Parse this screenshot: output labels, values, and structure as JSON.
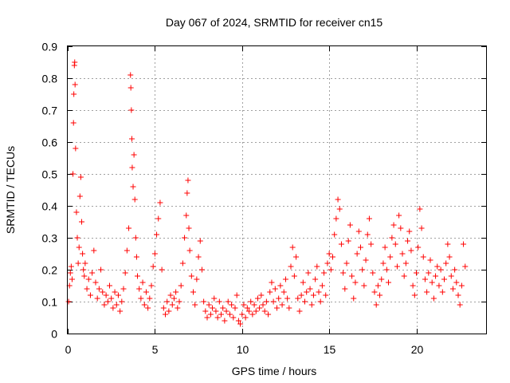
{
  "chart_data": {
    "type": "scatter",
    "title": "Day 067 of 2024, SRMTID for receiver cn15",
    "xlabel": "GPS time / hours",
    "ylabel": "SRMTID / TECUs",
    "xlim": [
      0,
      24.0
    ],
    "ylim": [
      0,
      0.9
    ],
    "x_ticks": [
      0,
      5,
      10,
      15,
      20
    ],
    "x_tick_labels": [
      "0",
      "5",
      "10",
      "15",
      "20"
    ],
    "y_ticks": [
      0,
      0.1,
      0.2,
      0.3,
      0.4,
      0.5,
      0.6,
      0.7,
      0.8,
      0.9
    ],
    "y_tick_labels": [
      "0",
      "0.1",
      "0.2",
      "0.3",
      "0.4",
      "0.5",
      "0.6",
      "0.7",
      "0.8",
      "0.9"
    ],
    "grid": true,
    "marker": "+",
    "color": "#ff0000",
    "series": [
      {
        "name": "SRMTID",
        "points": [
          [
            0.05,
            0.1
          ],
          [
            0.1,
            0.15
          ],
          [
            0.15,
            0.19
          ],
          [
            0.2,
            0.21
          ],
          [
            0.25,
            0.17
          ],
          [
            0.3,
            0.5
          ],
          [
            0.33,
            0.66
          ],
          [
            0.35,
            0.75
          ],
          [
            0.38,
            0.84
          ],
          [
            0.4,
            0.85
          ],
          [
            0.42,
            0.78
          ],
          [
            0.45,
            0.58
          ],
          [
            0.5,
            0.38
          ],
          [
            0.55,
            0.3
          ],
          [
            0.6,
            0.22
          ],
          [
            0.65,
            0.27
          ],
          [
            0.7,
            0.43
          ],
          [
            0.75,
            0.49
          ],
          [
            0.8,
            0.35
          ],
          [
            0.85,
            0.25
          ],
          [
            0.9,
            0.2
          ],
          [
            0.95,
            0.18
          ],
          [
            1.0,
            0.22
          ],
          [
            1.1,
            0.14
          ],
          [
            1.2,
            0.17
          ],
          [
            1.3,
            0.12
          ],
          [
            1.4,
            0.19
          ],
          [
            1.5,
            0.26
          ],
          [
            1.6,
            0.16
          ],
          [
            1.7,
            0.11
          ],
          [
            1.8,
            0.14
          ],
          [
            1.9,
            0.2
          ],
          [
            2.0,
            0.13
          ],
          [
            2.1,
            0.09
          ],
          [
            2.2,
            0.12
          ],
          [
            2.3,
            0.1
          ],
          [
            2.4,
            0.15
          ],
          [
            2.5,
            0.11
          ],
          [
            2.6,
            0.08
          ],
          [
            2.7,
            0.13
          ],
          [
            2.8,
            0.09
          ],
          [
            2.9,
            0.12
          ],
          [
            3.0,
            0.07
          ],
          [
            3.1,
            0.1
          ],
          [
            3.2,
            0.14
          ],
          [
            3.3,
            0.19
          ],
          [
            3.4,
            0.26
          ],
          [
            3.5,
            0.33
          ],
          [
            3.6,
            0.81
          ],
          [
            3.62,
            0.77
          ],
          [
            3.65,
            0.7
          ],
          [
            3.68,
            0.61
          ],
          [
            3.7,
            0.52
          ],
          [
            3.75,
            0.46
          ],
          [
            3.8,
            0.56
          ],
          [
            3.85,
            0.42
          ],
          [
            3.9,
            0.3
          ],
          [
            3.95,
            0.24
          ],
          [
            4.0,
            0.18
          ],
          [
            4.1,
            0.14
          ],
          [
            4.2,
            0.11
          ],
          [
            4.3,
            0.16
          ],
          [
            4.4,
            0.09
          ],
          [
            4.5,
            0.13
          ],
          [
            4.6,
            0.08
          ],
          [
            4.7,
            0.11
          ],
          [
            4.8,
            0.15
          ],
          [
            4.9,
            0.21
          ],
          [
            5.0,
            0.25
          ],
          [
            5.1,
            0.31
          ],
          [
            5.2,
            0.36
          ],
          [
            5.3,
            0.41
          ],
          [
            5.4,
            0.2
          ],
          [
            5.5,
            0.08
          ],
          [
            5.6,
            0.06
          ],
          [
            5.7,
            0.1
          ],
          [
            5.8,
            0.07
          ],
          [
            5.9,
            0.12
          ],
          [
            6.0,
            0.09
          ],
          [
            6.1,
            0.11
          ],
          [
            6.2,
            0.13
          ],
          [
            6.3,
            0.08
          ],
          [
            6.4,
            0.1
          ],
          [
            6.5,
            0.15
          ],
          [
            6.6,
            0.22
          ],
          [
            6.7,
            0.3
          ],
          [
            6.8,
            0.37
          ],
          [
            6.85,
            0.44
          ],
          [
            6.9,
            0.48
          ],
          [
            6.95,
            0.33
          ],
          [
            7.0,
            0.26
          ],
          [
            7.1,
            0.18
          ],
          [
            7.2,
            0.13
          ],
          [
            7.3,
            0.09
          ],
          [
            7.4,
            0.17
          ],
          [
            7.5,
            0.24
          ],
          [
            7.6,
            0.29
          ],
          [
            7.7,
            0.2
          ],
          [
            7.8,
            0.1
          ],
          [
            7.9,
            0.07
          ],
          [
            8.0,
            0.05
          ],
          [
            8.1,
            0.09
          ],
          [
            8.2,
            0.06
          ],
          [
            8.3,
            0.08
          ],
          [
            8.4,
            0.11
          ],
          [
            8.5,
            0.07
          ],
          [
            8.6,
            0.05
          ],
          [
            8.7,
            0.1
          ],
          [
            8.8,
            0.06
          ],
          [
            8.9,
            0.08
          ],
          [
            9.0,
            0.04
          ],
          [
            9.1,
            0.07
          ],
          [
            9.2,
            0.1
          ],
          [
            9.3,
            0.06
          ],
          [
            9.4,
            0.09
          ],
          [
            9.5,
            0.05
          ],
          [
            9.6,
            0.08
          ],
          [
            9.7,
            0.12
          ],
          [
            9.8,
            0.04
          ],
          [
            9.9,
            0.03
          ],
          [
            10.0,
            0.06
          ],
          [
            10.1,
            0.09
          ],
          [
            10.2,
            0.05
          ],
          [
            10.3,
            0.08
          ],
          [
            10.4,
            0.07
          ],
          [
            10.5,
            0.1
          ],
          [
            10.6,
            0.06
          ],
          [
            10.7,
            0.09
          ],
          [
            10.8,
            0.07
          ],
          [
            10.9,
            0.11
          ],
          [
            11.0,
            0.08
          ],
          [
            11.1,
            0.12
          ],
          [
            11.2,
            0.09
          ],
          [
            11.3,
            0.07
          ],
          [
            11.4,
            0.1
          ],
          [
            11.5,
            0.06
          ],
          [
            11.6,
            0.13
          ],
          [
            11.7,
            0.16
          ],
          [
            11.8,
            0.1
          ],
          [
            11.9,
            0.14
          ],
          [
            12.0,
            0.08
          ],
          [
            12.1,
            0.11
          ],
          [
            12.2,
            0.15
          ],
          [
            12.3,
            0.09
          ],
          [
            12.4,
            0.13
          ],
          [
            12.5,
            0.17
          ],
          [
            12.6,
            0.11
          ],
          [
            12.7,
            0.08
          ],
          [
            12.8,
            0.21
          ],
          [
            12.9,
            0.27
          ],
          [
            13.0,
            0.18
          ],
          [
            13.1,
            0.24
          ],
          [
            13.2,
            0.11
          ],
          [
            13.3,
            0.07
          ],
          [
            13.4,
            0.12
          ],
          [
            13.5,
            0.16
          ],
          [
            13.6,
            0.1
          ],
          [
            13.7,
            0.13
          ],
          [
            13.8,
            0.19
          ],
          [
            13.9,
            0.14
          ],
          [
            14.0,
            0.09
          ],
          [
            14.1,
            0.12
          ],
          [
            14.2,
            0.17
          ],
          [
            14.3,
            0.21
          ],
          [
            14.4,
            0.13
          ],
          [
            14.5,
            0.1
          ],
          [
            14.6,
            0.15
          ],
          [
            14.7,
            0.19
          ],
          [
            14.8,
            0.12
          ],
          [
            14.9,
            0.22
          ],
          [
            15.0,
            0.25
          ],
          [
            15.1,
            0.2
          ],
          [
            15.2,
            0.24
          ],
          [
            15.3,
            0.31
          ],
          [
            15.4,
            0.36
          ],
          [
            15.5,
            0.42
          ],
          [
            15.6,
            0.39
          ],
          [
            15.7,
            0.28
          ],
          [
            15.8,
            0.19
          ],
          [
            15.9,
            0.14
          ],
          [
            16.0,
            0.22
          ],
          [
            16.1,
            0.29
          ],
          [
            16.2,
            0.34
          ],
          [
            16.3,
            0.18
          ],
          [
            16.4,
            0.11
          ],
          [
            16.5,
            0.16
          ],
          [
            16.6,
            0.25
          ],
          [
            16.7,
            0.32
          ],
          [
            16.8,
            0.27
          ],
          [
            16.9,
            0.2
          ],
          [
            17.0,
            0.15
          ],
          [
            17.1,
            0.23
          ],
          [
            17.2,
            0.31
          ],
          [
            17.3,
            0.36
          ],
          [
            17.4,
            0.28
          ],
          [
            17.5,
            0.19
          ],
          [
            17.6,
            0.13
          ],
          [
            17.7,
            0.09
          ],
          [
            17.8,
            0.15
          ],
          [
            17.9,
            0.12
          ],
          [
            18.0,
            0.17
          ],
          [
            18.1,
            0.22
          ],
          [
            18.2,
            0.27
          ],
          [
            18.3,
            0.2
          ],
          [
            18.4,
            0.16
          ],
          [
            18.5,
            0.24
          ],
          [
            18.6,
            0.3
          ],
          [
            18.7,
            0.34
          ],
          [
            18.8,
            0.28
          ],
          [
            18.9,
            0.21
          ],
          [
            19.0,
            0.37
          ],
          [
            19.1,
            0.33
          ],
          [
            19.2,
            0.25
          ],
          [
            19.3,
            0.18
          ],
          [
            19.4,
            0.22
          ],
          [
            19.5,
            0.29
          ],
          [
            19.6,
            0.32
          ],
          [
            19.7,
            0.26
          ],
          [
            19.8,
            0.15
          ],
          [
            19.9,
            0.12
          ],
          [
            20.0,
            0.19
          ],
          [
            20.1,
            0.27
          ],
          [
            20.2,
            0.39
          ],
          [
            20.3,
            0.33
          ],
          [
            20.4,
            0.24
          ],
          [
            20.5,
            0.17
          ],
          [
            20.6,
            0.13
          ],
          [
            20.7,
            0.19
          ],
          [
            20.8,
            0.23
          ],
          [
            20.9,
            0.16
          ],
          [
            21.0,
            0.11
          ],
          [
            21.1,
            0.18
          ],
          [
            21.2,
            0.21
          ],
          [
            21.3,
            0.15
          ],
          [
            21.4,
            0.2
          ],
          [
            21.5,
            0.13
          ],
          [
            21.6,
            0.17
          ],
          [
            21.7,
            0.22
          ],
          [
            21.8,
            0.28
          ],
          [
            21.9,
            0.24
          ],
          [
            22.0,
            0.18
          ],
          [
            22.1,
            0.14
          ],
          [
            22.2,
            0.2
          ],
          [
            22.3,
            0.16
          ],
          [
            22.4,
            0.12
          ],
          [
            22.5,
            0.09
          ],
          [
            22.6,
            0.15
          ],
          [
            22.7,
            0.28
          ],
          [
            22.8,
            0.21
          ]
        ]
      }
    ]
  }
}
